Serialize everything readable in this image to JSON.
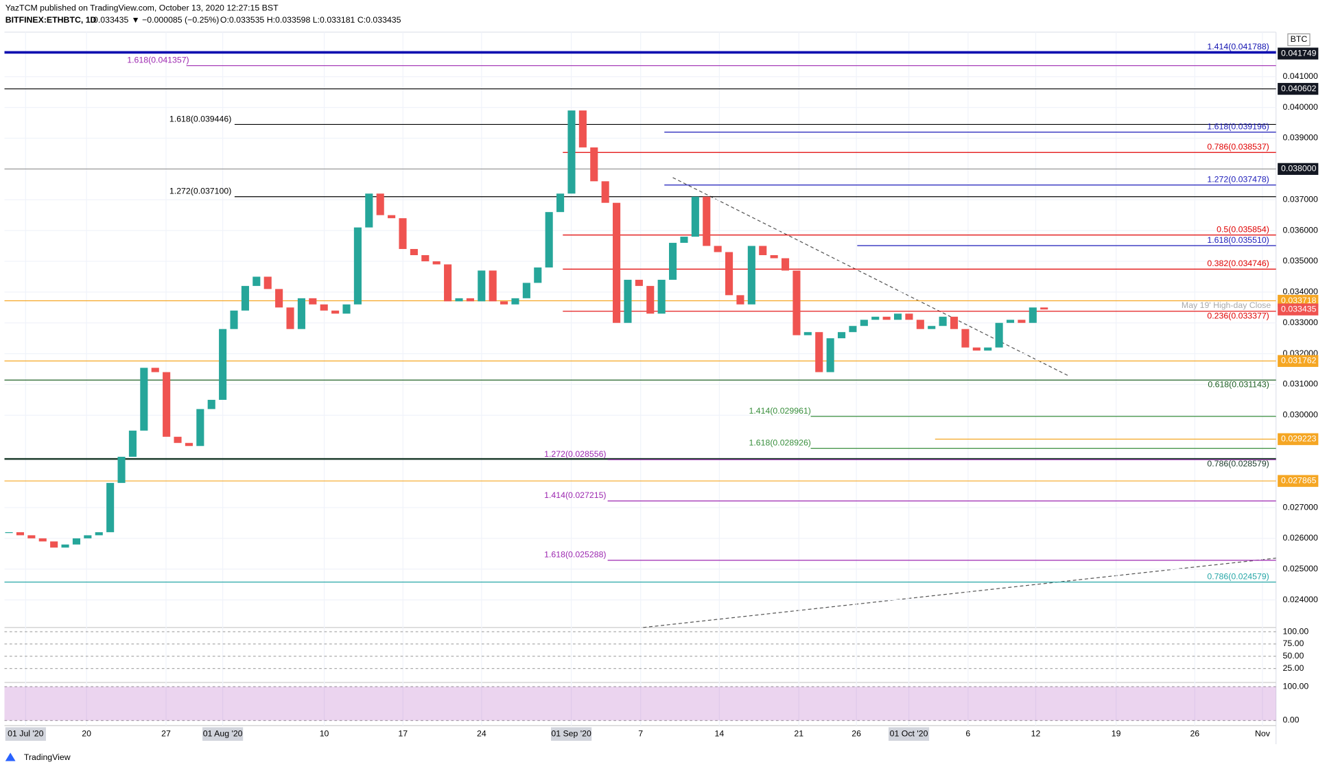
{
  "header": {
    "publisher": "YazTCM published on TradingView.com, October 13, 2020 12:27:15 BST",
    "symbol": "BITFINEX:ETHBTC, 1D",
    "last": "0.033435",
    "change": "▼ −0.000085 (−0.25%)",
    "ohlc": "O:0.033535 H:0.033598 L:0.033181 C:0.033435",
    "logo": "TradingView"
  },
  "chart_data": {
    "type": "candlestick",
    "currency": "BTC",
    "close": [
      0.0262,
      0.0261,
      0.026,
      0.0259,
      0.0257,
      0.0258,
      0.026,
      0.0261,
      0.0262,
      0.0278,
      0.02865,
      0.0295,
      0.03154,
      0.0314,
      0.0293,
      0.0291,
      0.029,
      0.0302,
      0.0305,
      0.0328,
      0.0334,
      0.0342,
      0.0345,
      0.0341,
      0.0335,
      0.0328,
      0.0338,
      0.0336,
      0.0334,
      0.0333,
      0.0336,
      0.0361,
      0.0372,
      0.0365,
      0.0364,
      0.0354,
      0.0352,
      0.035,
      0.0349,
      0.0337,
      0.0338,
      0.0337,
      0.0347,
      0.0337,
      0.0336,
      0.0338,
      0.0343,
      0.0348,
      0.0366,
      0.0372,
      0.0399,
      0.0387,
      0.0376,
      0.0369,
      0.033,
      0.0344,
      0.0342,
      0.0333,
      0.0344,
      0.0356,
      0.0358,
      0.0371,
      0.0355,
      0.0353,
      0.0339,
      0.0336,
      0.0355,
      0.0352,
      0.0351,
      0.0347,
      0.0326,
      0.0327,
      0.0314,
      0.0325,
      0.0327,
      0.0329,
      0.0331,
      0.0332,
      0.0331,
      0.0333,
      0.0331,
      0.0328,
      0.0329,
      0.0332,
      0.0328,
      0.0322,
      0.0321,
      0.0322,
      0.033,
      0.0331,
      0.033,
      0.0335,
      0.033435
    ],
    "ylim": [
      0.023104,
      0.042445
    ],
    "yticks": [
      {
        "value": 0.041,
        "label": "0.041000"
      },
      {
        "value": 0.04,
        "label": "0.040000"
      },
      {
        "value": 0.039,
        "label": "0.039000"
      },
      {
        "value": 0.037,
        "label": "0.037000"
      },
      {
        "value": 0.036,
        "label": "0.036000"
      },
      {
        "value": 0.035,
        "label": "0.035000"
      },
      {
        "value": 0.034,
        "label": "0.034000"
      },
      {
        "value": 0.033,
        "label": "0.033000"
      },
      {
        "value": 0.032,
        "label": "0.032000"
      },
      {
        "value": 0.031,
        "label": "0.031000"
      },
      {
        "value": 0.03,
        "label": "0.030000"
      },
      {
        "value": 0.027,
        "label": "0.027000"
      },
      {
        "value": 0.026,
        "label": "0.026000"
      },
      {
        "value": 0.025,
        "label": "0.025000"
      },
      {
        "value": 0.024,
        "label": "0.024000"
      }
    ],
    "levels": [
      {
        "value": 0.041788,
        "label": "1.414(0.041788)",
        "color": "#1010b0"
      },
      {
        "value": 0.041357,
        "label": "1.618(0.041357)",
        "color": "#9c27b0"
      },
      {
        "value": 0.040602,
        "color": "#000000"
      },
      {
        "value": 0.039446,
        "label": "1.618(0.039446)",
        "color": "#000000"
      },
      {
        "value": 0.039196,
        "label": "1.618(0.039196)",
        "color": "#1a1ab8"
      },
      {
        "value": 0.038537,
        "label": "0.786(0.038537)",
        "color": "#e00000"
      },
      {
        "value": 0.038,
        "color": "#999999"
      },
      {
        "value": 0.037478,
        "label": "1.272(0.037478)",
        "color": "#1a1ab8"
      },
      {
        "value": 0.0371,
        "label": "1.272(0.037100)",
        "color": "#000000"
      },
      {
        "value": 0.035854,
        "label": "0.5(0.035854)",
        "color": "#e00000"
      },
      {
        "value": 0.03551,
        "label": "1.618(0.035510)",
        "color": "#1a1ab8"
      },
      {
        "value": 0.034746,
        "label": "0.382(0.034746)",
        "color": "#e00000"
      },
      {
        "value": 0.033718,
        "label": "May 19' High-day Close",
        "color": "#f5a623"
      },
      {
        "value": 0.033377,
        "label": "0.236(0.033377)",
        "color": "#e00000"
      },
      {
        "value": 0.031762,
        "color": "#f5a623"
      },
      {
        "value": 0.031143,
        "label": "0.618(0.031143)",
        "color": "#1b5e20"
      },
      {
        "value": 0.029961,
        "label": "1.414(0.029961)",
        "color": "#388e3c"
      },
      {
        "value": 0.029223,
        "color": "#f5a623"
      },
      {
        "value": 0.028926,
        "label": "1.618(0.028926)",
        "color": "#388e3c"
      },
      {
        "value": 0.028579,
        "label": "0.786(0.028579)",
        "color": "#1b3b2b"
      },
      {
        "value": 0.028556,
        "label": "1.272(0.028556)",
        "color": "#9c27b0"
      },
      {
        "value": 0.027865,
        "color": "#f5a623"
      },
      {
        "value": 0.027215,
        "label": "1.414(0.027215)",
        "color": "#9c27b0"
      },
      {
        "value": 0.025288,
        "label": "1.618(0.025288)",
        "color": "#9c27b0"
      },
      {
        "value": 0.024579,
        "label": "0.786(0.024579)",
        "color": "#26a6a6"
      }
    ],
    "price_boxes": [
      {
        "value": 0.041749,
        "label": "0.041749",
        "color": "#131722"
      },
      {
        "value": 0.040602,
        "label": "0.040602",
        "color": "#131722"
      },
      {
        "value": 0.038,
        "label": "0.038000",
        "color": "#131722"
      },
      {
        "value": 0.033718,
        "label": "0.033718",
        "color": "#f5a623"
      },
      {
        "value": 0.033435,
        "label": "0.033435",
        "color": "#ef5350"
      },
      {
        "value": 0.031762,
        "label": "0.031762",
        "color": "#f5a623"
      },
      {
        "value": 0.029223,
        "label": "0.029223",
        "color": "#f5a623"
      },
      {
        "value": 0.027865,
        "label": "0.027865",
        "color": "#f5a623"
      }
    ],
    "time_labels": [
      "01 Jul '20",
      "20",
      "27",
      "01 Aug '20",
      "10",
      "17",
      "24",
      "01 Sep '20",
      "7",
      "14",
      "21",
      "26",
      "01 Oct '20",
      "6",
      "12",
      "19",
      "26",
      "Nov"
    ],
    "rsi": {
      "ylim": [
        0,
        100
      ],
      "yticks": [
        {
          "value": 100,
          "label": "100.00"
        },
        {
          "value": 75,
          "label": "75.00"
        },
        {
          "value": 50,
          "label": "50.00"
        },
        {
          "value": 25,
          "label": "25.00"
        }
      ]
    },
    "stoch": {
      "ylim": [
        0,
        100
      ],
      "yticks": [
        {
          "value": 100,
          "label": "100.00"
        },
        {
          "value": 0,
          "label": "0.00"
        }
      ]
    }
  }
}
